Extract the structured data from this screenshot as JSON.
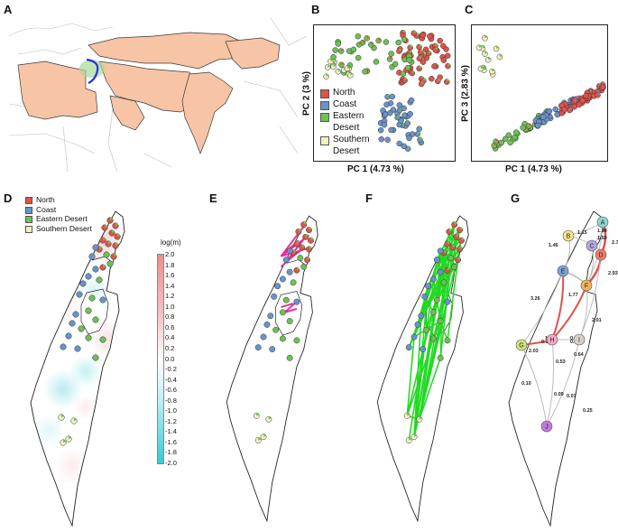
{
  "panels": {
    "A": "A",
    "B": "B",
    "C": "C",
    "D": "D",
    "E": "E",
    "F": "F",
    "G": "G"
  },
  "colors": {
    "north": "#e0524a",
    "coast": "#6a93c8",
    "eastern": "#6fbf55",
    "southern": "#f3efc3",
    "edge_E": "#e62e9a",
    "edge_F": "#22d922",
    "map_fill": "#f7c4a5"
  },
  "legend": {
    "north": "North",
    "coast": "Coast",
    "eastern_line1": "Eastern",
    "eastern_line2": "Desert",
    "southern_line1": "Southern",
    "southern_line2": "Desert",
    "eastern_full": "Eastern Desert",
    "southern_full": "Southern Desert"
  },
  "axes": {
    "B_x": "PC 1 (4.73 %)",
    "B_y": "PC 2 (3 %)",
    "C_x": "PC 1 (4.73 %)",
    "C_y": "PC 3 (2.83 %)"
  },
  "colorbar": {
    "title": "log(m)",
    "ticks": [
      "2.0",
      "1.8",
      "1.6",
      "1.4",
      "1.2",
      "1.0",
      "0.8",
      "0.6",
      "0.4",
      "0.2",
      "0.0",
      "-0.2",
      "-0.4",
      "-0.6",
      "-0.8",
      "-1.0",
      "-1.2",
      "-1.4",
      "-1.6",
      "-1.8",
      "-2.0"
    ]
  },
  "graph_G": {
    "nodes": [
      "A",
      "B",
      "C",
      "D",
      "E",
      "F",
      "G",
      "H",
      "I",
      "J"
    ],
    "edge_labels": [
      "1.15",
      "1.98",
      "1.59",
      "2.70",
      "1.46",
      "2.93",
      "3.26",
      "1.77",
      "2.01",
      "0.10",
      "0.57",
      "0.52",
      "0.64",
      "2.03",
      "0.53",
      "0.10",
      "0.09",
      "0.07",
      "0.25",
      "1.12"
    ]
  }
}
